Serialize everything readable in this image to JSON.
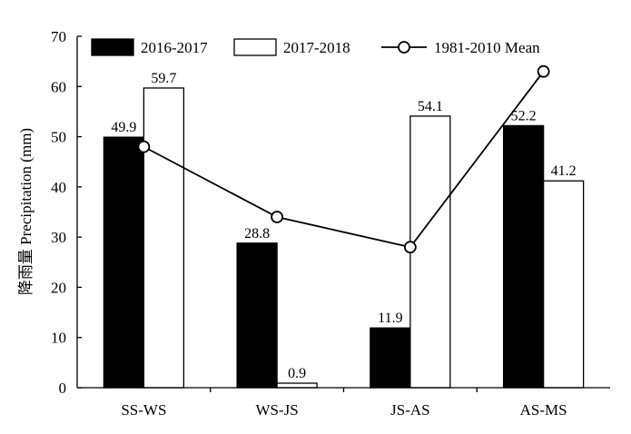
{
  "chart_data": {
    "type": "bar",
    "categories": [
      "SS-WS",
      "WS-JS",
      "JS-AS",
      "AS-MS"
    ],
    "series": [
      {
        "name": "2016-2017",
        "kind": "bar",
        "color": "#000000",
        "values": [
          49.9,
          28.8,
          11.9,
          52.2
        ],
        "labels": [
          "49.9",
          "28.8",
          "11.9",
          "52.2"
        ]
      },
      {
        "name": "2017-2018",
        "kind": "bar",
        "color": "#ffffff",
        "values": [
          59.7,
          0.9,
          54.1,
          41.2
        ],
        "labels": [
          "59.7",
          "0.9",
          "54.1",
          "41.2"
        ]
      },
      {
        "name": "1981-2010 Mean",
        "kind": "line",
        "marker": "open-circle",
        "color": "#000000",
        "values": [
          48,
          34,
          28,
          63
        ]
      }
    ],
    "ylabel": "降雨量 Precipitation (mm)",
    "xlabel": "",
    "ylim": [
      0,
      70
    ],
    "yticks": [
      "0",
      "10",
      "20",
      "30",
      "40",
      "50",
      "60",
      "70"
    ],
    "grid": false,
    "legend_position": "top"
  }
}
